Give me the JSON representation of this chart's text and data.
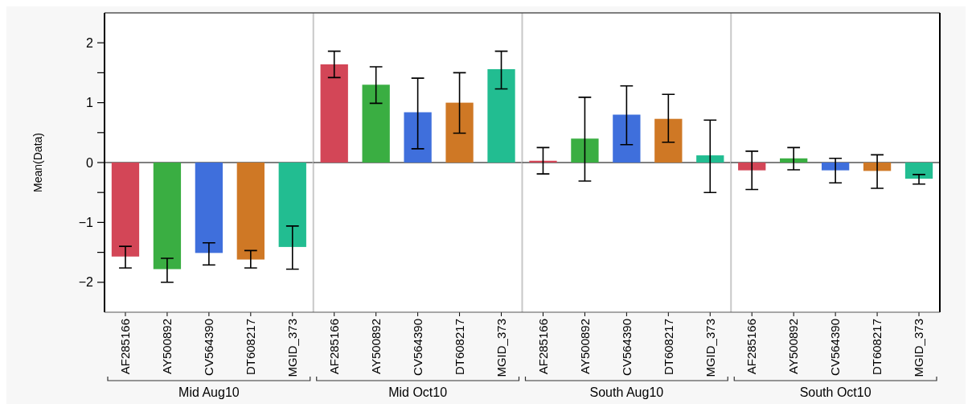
{
  "chart_data": [
    {
      "type": "bar",
      "xlabel": "Mid Aug10",
      "ylabel": "Mean(Data)",
      "categories": [
        "AF285166",
        "AY500892",
        "CV564390",
        "DT608217",
        "MGID_373"
      ],
      "values": [
        -1.57,
        -1.78,
        -1.51,
        -1.62,
        -1.41
      ],
      "errors": [
        [
          -1.76,
          -1.4
        ],
        [
          -2.0,
          -1.6
        ],
        [
          -1.71,
          -1.34
        ],
        [
          -1.76,
          -1.47
        ],
        [
          -1.78,
          -1.06
        ]
      ],
      "colors": [
        "#d34657",
        "#3aae42",
        "#3f6fdc",
        "#cf7825",
        "#22bd91"
      ],
      "ylim": [
        -2.5,
        2.5
      ],
      "yticks": [
        -2,
        {
          "value": -1.5,
          "label": null
        },
        -1,
        {
          "value": -0.5,
          "label": null
        },
        0,
        {
          "value": 0.5,
          "label": null
        },
        1,
        {
          "value": 1.5,
          "label": null
        },
        2
      ],
      "ref_lines": [
        {
          "axis": "y",
          "value": 0
        }
      ]
    },
    {
      "type": "bar",
      "xlabel": "Mid Oct10",
      "categories": [
        "AF285166",
        "AY500892",
        "CV564390",
        "DT608217",
        "MGID_373"
      ],
      "values": [
        1.64,
        1.3,
        0.84,
        1.0,
        1.56
      ],
      "errors": [
        [
          1.42,
          1.86
        ],
        [
          0.99,
          1.6
        ],
        [
          0.23,
          1.41
        ],
        [
          0.49,
          1.5
        ],
        [
          1.23,
          1.86
        ]
      ],
      "colors": [
        "#d34657",
        "#3aae42",
        "#3f6fdc",
        "#cf7825",
        "#22bd91"
      ],
      "ylim": [
        -2.5,
        2.5
      ],
      "tick_labels": "x",
      "ref_lines": [
        {
          "axis": "y",
          "value": 0
        }
      ]
    },
    {
      "type": "bar",
      "xlabel": "South Aug10",
      "categories": [
        "AF285166",
        "AY500892",
        "CV564390",
        "DT608217",
        "MGID_373"
      ],
      "values": [
        0.03,
        0.4,
        0.8,
        0.73,
        0.12
      ],
      "errors": [
        [
          -0.19,
          0.25
        ],
        [
          -0.31,
          1.09
        ],
        [
          0.3,
          1.28
        ],
        [
          0.34,
          1.14
        ],
        [
          -0.5,
          0.71
        ]
      ],
      "colors": [
        "#d34657",
        "#3aae42",
        "#3f6fdc",
        "#cf7825",
        "#22bd91"
      ],
      "ylim": [
        -2.5,
        2.5
      ],
      "tick_labels": "x",
      "ref_lines": [
        {
          "axis": "y",
          "value": 0
        }
      ]
    },
    {
      "type": "bar",
      "xlabel": "South Oct10",
      "categories": [
        "AF285166",
        "AY500892",
        "CV564390",
        "DT608217",
        "MGID_373"
      ],
      "values": [
        -0.13,
        0.07,
        -0.13,
        -0.14,
        -0.27
      ],
      "errors": [
        [
          -0.45,
          0.19
        ],
        [
          -0.12,
          0.25
        ],
        [
          -0.34,
          0.07
        ],
        [
          -0.43,
          0.13
        ],
        [
          -0.36,
          -0.2
        ]
      ],
      "colors": [
        "#d34657",
        "#3aae42",
        "#3f6fdc",
        "#cf7825",
        "#22bd91"
      ],
      "ylim": [
        -2.5,
        2.5
      ],
      "tick_labels": "x",
      "ref_lines": [
        {
          "axis": "y",
          "value": 0
        }
      ]
    }
  ]
}
